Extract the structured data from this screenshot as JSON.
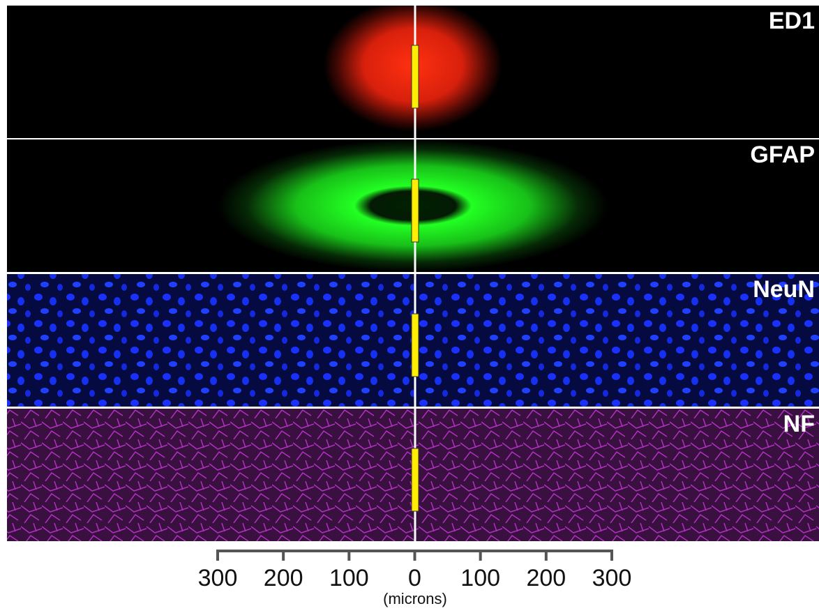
{
  "panels": [
    {
      "label": "ED1"
    },
    {
      "label": "GFAP"
    },
    {
      "label": "NeuN"
    },
    {
      "label": "NF"
    }
  ],
  "scale": {
    "xlim": [
      -300,
      300
    ],
    "xticks": [
      {
        "value": -300,
        "label": "300"
      },
      {
        "value": -200,
        "label": "200"
      },
      {
        "value": -100,
        "label": "100"
      },
      0,
      100,
      200,
      300
    ],
    "unit": "(microns)"
  }
}
